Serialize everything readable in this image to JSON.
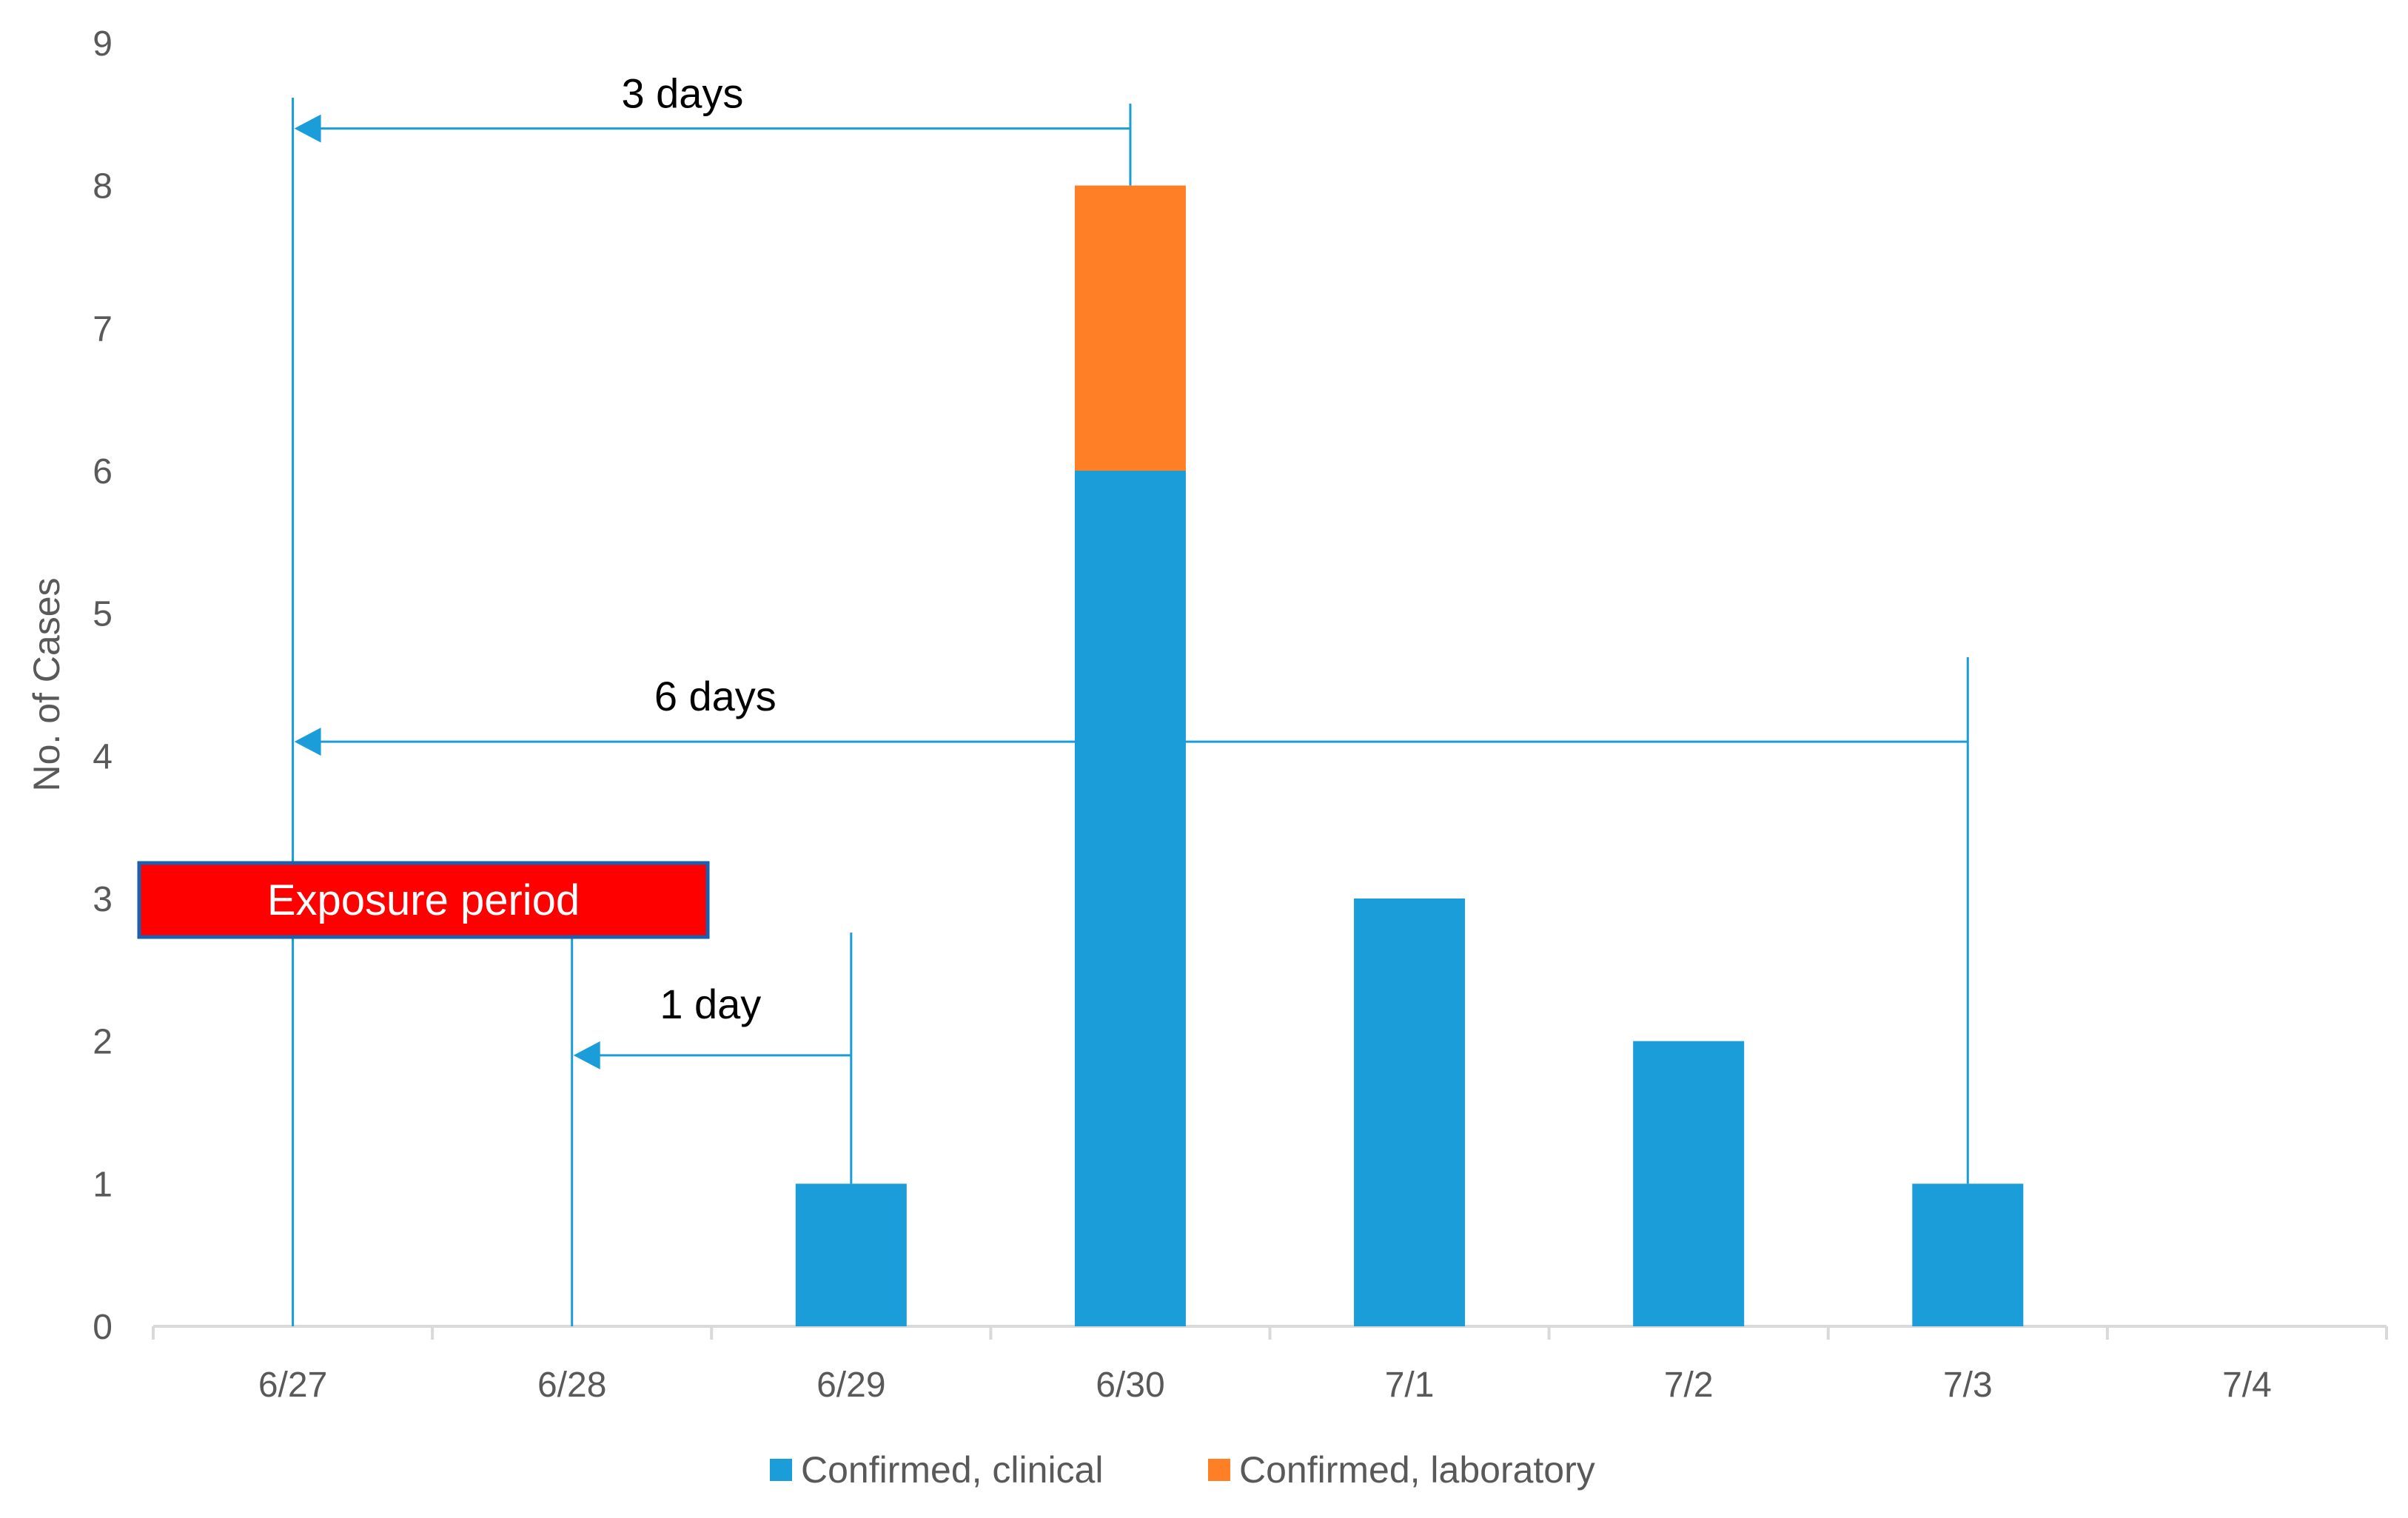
{
  "chart_data": {
    "type": "bar",
    "stacked": true,
    "categories": [
      "6/27",
      "6/28",
      "6/29",
      "6/30",
      "7/1",
      "7/2",
      "7/3",
      "7/4"
    ],
    "series": [
      {
        "name": "Confirmed, clinical",
        "values": [
          0,
          0,
          1,
          6,
          3,
          2,
          1,
          0
        ],
        "color": "#1b9dd9"
      },
      {
        "name": "Confirmed, laboratory",
        "values": [
          0,
          0,
          0,
          2,
          0,
          0,
          0,
          0
        ],
        "color": "#ff7f27"
      }
    ],
    "ylabel": "No. of Cases",
    "xlabel": "",
    "ylim": [
      0,
      9
    ],
    "yticks": [
      0,
      1,
      2,
      3,
      4,
      5,
      6,
      7,
      8,
      9
    ],
    "grid": false,
    "legend": "bottom",
    "annotations": {
      "exposure_period": {
        "label": "Exposure period",
        "from": "6/27",
        "to": "6/29",
        "y": 3,
        "fill": "#ff0000",
        "border": "#1b5fae"
      },
      "intervals": [
        {
          "label": "3 days",
          "from": "6/30",
          "to": "6/27",
          "y": 8.4
        },
        {
          "label": "6 days",
          "from": "7/3",
          "to": "6/27",
          "y": 4.1
        },
        {
          "label": "1 day",
          "from": "6/29",
          "to": "6/28",
          "y": 1.9
        }
      ],
      "line_color": "#1b9dd9"
    }
  }
}
